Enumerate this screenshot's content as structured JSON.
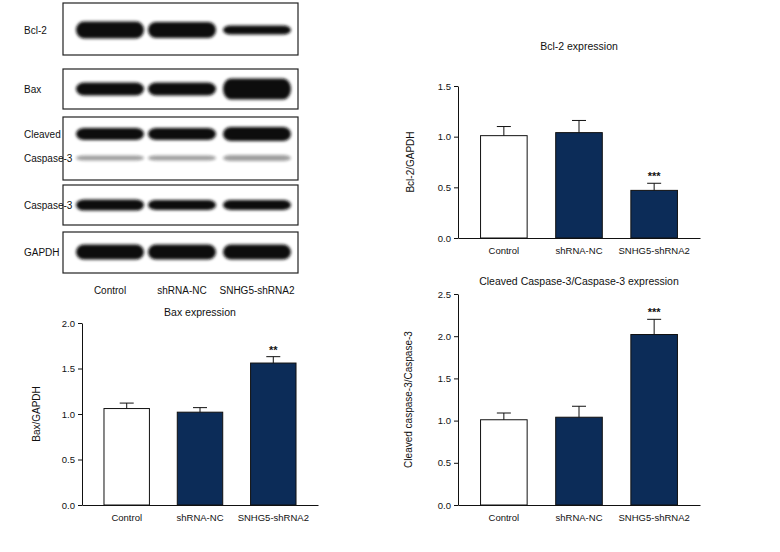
{
  "blot": {
    "rows": [
      {
        "labels": [
          "Bcl-2"
        ]
      },
      {
        "labels": [
          "Bax"
        ]
      },
      {
        "labels": [
          "Cleaved",
          "Caspase-3"
        ]
      },
      {
        "labels": [
          "Caspase-3"
        ]
      },
      {
        "labels": [
          "GAPDH"
        ]
      }
    ],
    "lanes": [
      "Control",
      "shRNA-NC",
      "SNHG5-shRNA2"
    ]
  },
  "chart_data": [
    {
      "type": "bar",
      "title": "Bcl-2 expression",
      "ylabel": "Bcl-2/GAPDH",
      "categories": [
        "Control",
        "shRNA-NC",
        "SNHG5-shRNA2"
      ],
      "values": [
        1.01,
        1.04,
        0.47
      ],
      "errors": [
        0.09,
        0.12,
        0.07
      ],
      "significance": [
        null,
        null,
        "***"
      ],
      "colors": [
        "#ffffff",
        "#0c2c58",
        "#0c2c58"
      ],
      "ylim": [
        0,
        1.5
      ],
      "yticks": [
        {
          "value": 0,
          "label": "0.0"
        },
        {
          "value": 0.5,
          "label": "0.5"
        },
        {
          "value": 1,
          "label": "1.0"
        },
        {
          "value": 1.5,
          "label": "1.5"
        }
      ]
    },
    {
      "type": "bar",
      "title": "Bax expression",
      "ylabel": "Bax/GAPDH",
      "categories": [
        "Control",
        "shRNA-NC",
        "SNHG5-shRNA2"
      ],
      "values": [
        1.06,
        1.02,
        1.56
      ],
      "errors": [
        0.06,
        0.05,
        0.07
      ],
      "significance": [
        null,
        null,
        "**"
      ],
      "colors": [
        "#ffffff",
        "#0c2c58",
        "#0c2c58"
      ],
      "ylim": [
        0,
        2
      ],
      "yticks": [
        {
          "value": 0,
          "label": "0.0"
        },
        {
          "value": 0.5,
          "label": "0.5"
        },
        {
          "value": 1,
          "label": "1.0"
        },
        {
          "value": 1.5,
          "label": "1.5"
        },
        {
          "value": 2,
          "label": "2.0"
        }
      ]
    },
    {
      "type": "bar",
      "title": "Cleaved Caspase-3/Caspase-3 expression",
      "ylabel": "Cleaved caspase-3/Caspase-3",
      "categories": [
        "Control",
        "shRNA-NC",
        "SNHG5-shRNA2"
      ],
      "values": [
        1.01,
        1.04,
        2.02
      ],
      "errors": [
        0.08,
        0.13,
        0.18
      ],
      "significance": [
        null,
        null,
        "***"
      ],
      "colors": [
        "#ffffff",
        "#0c2c58",
        "#0c2c58"
      ],
      "ylim": [
        0,
        2.5
      ],
      "yticks": [
        {
          "value": 0,
          "label": "0.0"
        },
        {
          "value": 0.5,
          "label": "0.5"
        },
        {
          "value": 1,
          "label": "1.0"
        },
        {
          "value": 1.5,
          "label": "1.5"
        },
        {
          "value": 2,
          "label": "2.0"
        },
        {
          "value": 2.5,
          "label": "2.5"
        }
      ]
    }
  ]
}
